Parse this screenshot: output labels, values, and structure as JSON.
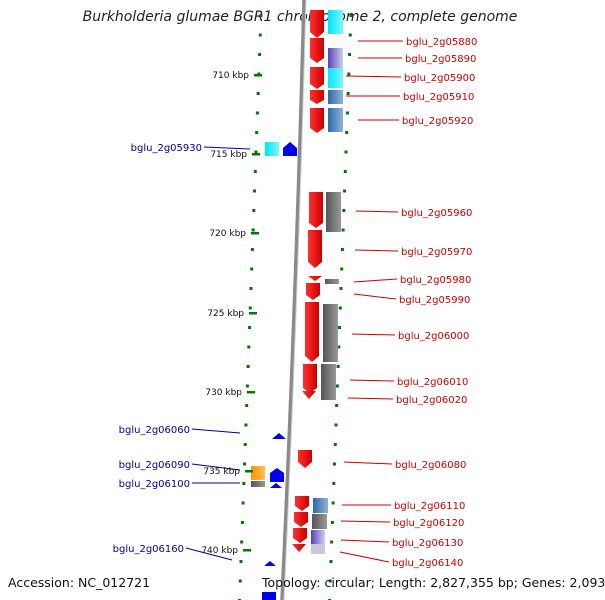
{
  "title": "Burkholderia glumae BGR1 chromosome 2, complete genome",
  "accession_text": "Accession: NC_012721",
  "summary_text": "Topology: circular; Length: 2,827,355 bp; Genes: 2,093",
  "scale_labels": [
    "710 kbp",
    "715 kbp",
    "720 kbp",
    "725 kbp",
    "730 kbp",
    "735 kbp",
    "740 kbp"
  ],
  "right_genes": [
    "bglu_2g05880",
    "bglu_2g05890",
    "bglu_2g05900",
    "bglu_2g05910",
    "bglu_2g05920",
    "bglu_2g05960",
    "bglu_2g05970",
    "bglu_2g05980",
    "bglu_2g05990",
    "bglu_2g06000",
    "bglu_2g06010",
    "bglu_2g06020",
    "bglu_2g06080",
    "bglu_2g06110",
    "bglu_2g06120",
    "bglu_2g06130",
    "bglu_2g06140"
  ],
  "left_genes": [
    "bglu_2g05930",
    "bglu_2g06060",
    "bglu_2g06090",
    "bglu_2g06100",
    "bglu_2g06160"
  ],
  "colors": {
    "forward_strand": "#ee0000",
    "reverse_strand": "#0000ee",
    "right_label": "#cc0000",
    "left_label": "#000099",
    "tick": "#007700",
    "backbone": "#8a8a8a"
  }
}
